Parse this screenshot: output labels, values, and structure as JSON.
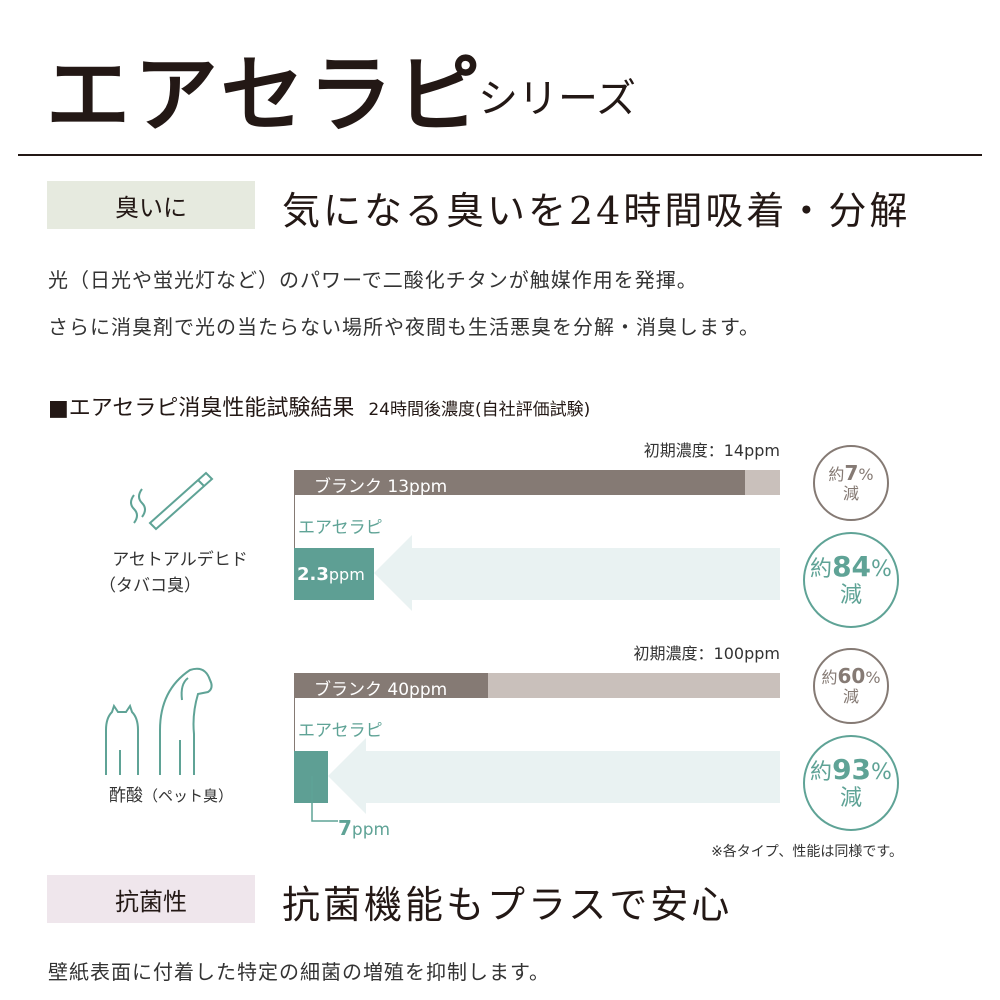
{
  "header": {
    "title": "エアセラピ",
    "subtitle": "シリーズ"
  },
  "section1": {
    "tag": "臭いに",
    "tag_color": "#e6eadf",
    "heading": "気になる臭いを24時間吸着・分解",
    "lines": [
      "光（日光や蛍光灯など）のパワーで二酸化チタンが触媒作用を発揮。",
      "さらに消臭剤で光の当たらない場所や夜間も生活悪臭を分解・消臭します。"
    ]
  },
  "results": {
    "heading": "■エアセラピ消臭性能試験結果",
    "heading_note": "24時間後濃度(自社評価試験)",
    "note": "※各タイプ、性能は同様です。",
    "rows": [
      {
        "gas": "アセトアルデヒド",
        "gas_sub": "（タバコ臭）",
        "icon": "cigarette-icon",
        "initial_label": "初期濃度：14ppm",
        "initial_ppm": 14,
        "blank_label": "ブランク 13ppm",
        "blank_ppm": 13,
        "product_label": "エアセラピ",
        "product_value": "2.3",
        "product_unit": "ppm",
        "product_ppm": 2.3,
        "blank_reduction": {
          "pre": "約",
          "num": "7",
          "pct": "%",
          "post": "減"
        },
        "product_reduction": {
          "pre": "約",
          "num": "84",
          "pct": "%",
          "post": "減"
        }
      },
      {
        "gas": "酢酸",
        "gas_sub": "（ペット臭）",
        "icon": "dog-cat-icon",
        "initial_label": "初期濃度：100ppm",
        "initial_ppm": 100,
        "blank_label": "ブランク 40ppm",
        "blank_ppm": 40,
        "product_label": "エアセラピ",
        "product_value": "7",
        "product_unit": "ppm",
        "product_ppm": 7,
        "blank_reduction": {
          "pre": "約",
          "num": "60",
          "pct": "%",
          "post": "減"
        },
        "product_reduction": {
          "pre": "約",
          "num": "93",
          "pct": "%",
          "post": "減"
        }
      }
    ],
    "colors": {
      "blank": "#857a74",
      "initial": "#c9c0bb",
      "product": "#5e9f94",
      "arrow": "#e9f2f2"
    }
  },
  "section2": {
    "tag": "抗菌性",
    "tag_color": "#efe6ec",
    "heading": "抗菌機能もプラスで安心",
    "line": "壁紙表面に付着した特定の細菌の増殖を抑制します。"
  }
}
